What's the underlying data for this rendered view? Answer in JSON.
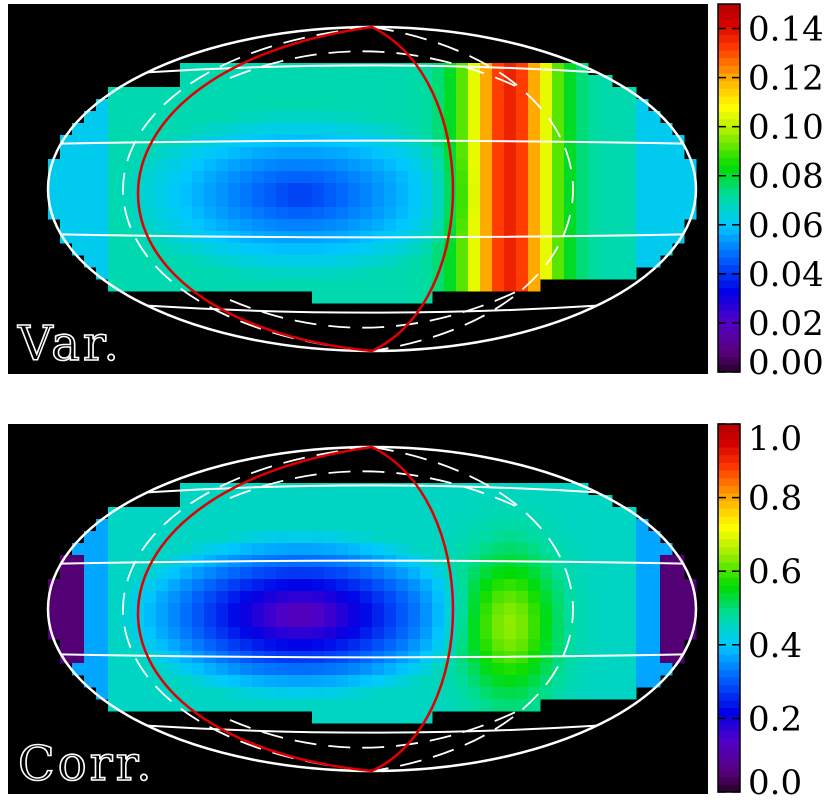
{
  "chart_data": [
    {
      "type": "heatmap",
      "projection": "Aitoff",
      "panel_label": "Var.",
      "colormap": "rainbow",
      "background": "#000000",
      "colorbar": {
        "range": [
          0.0,
          0.15
        ],
        "ticks": [
          "0.14",
          "0.12",
          "0.10",
          "0.08",
          "0.06",
          "0.04",
          "0.02",
          "0.00"
        ],
        "tick_values": [
          0.14,
          0.12,
          0.1,
          0.08,
          0.06,
          0.04,
          0.02,
          0.0
        ]
      },
      "field": {
        "description_levels": {
          "central_minimum": 0.04,
          "ring_level": 0.07,
          "right_band_maximum": 0.14,
          "outer_edge_level": 0.05
        }
      },
      "overlays": {
        "grid_color": "#ffffff",
        "curve_color": "#e00000",
        "dashed_color": "#ffffff"
      }
    },
    {
      "type": "heatmap",
      "projection": "Aitoff",
      "panel_label": "Corr.",
      "colormap": "rainbow",
      "background": "#000000",
      "colorbar": {
        "range": [
          0.0,
          1.0
        ],
        "ticks": [
          "1.0",
          "0.8",
          "0.6",
          "0.4",
          "0.2",
          "0.0"
        ],
        "tick_values": [
          1.0,
          0.8,
          0.6,
          0.4,
          0.2,
          0.0
        ]
      },
      "field": {
        "description_levels": {
          "central_minimum": 0.1,
          "ring_level": 0.45,
          "right_band_maximum": 0.65,
          "outer_edge_level": 0.25
        }
      },
      "overlays": {
        "grid_color": "#ffffff",
        "curve_color": "#e00000",
        "dashed_color": "#ffffff"
      }
    }
  ]
}
